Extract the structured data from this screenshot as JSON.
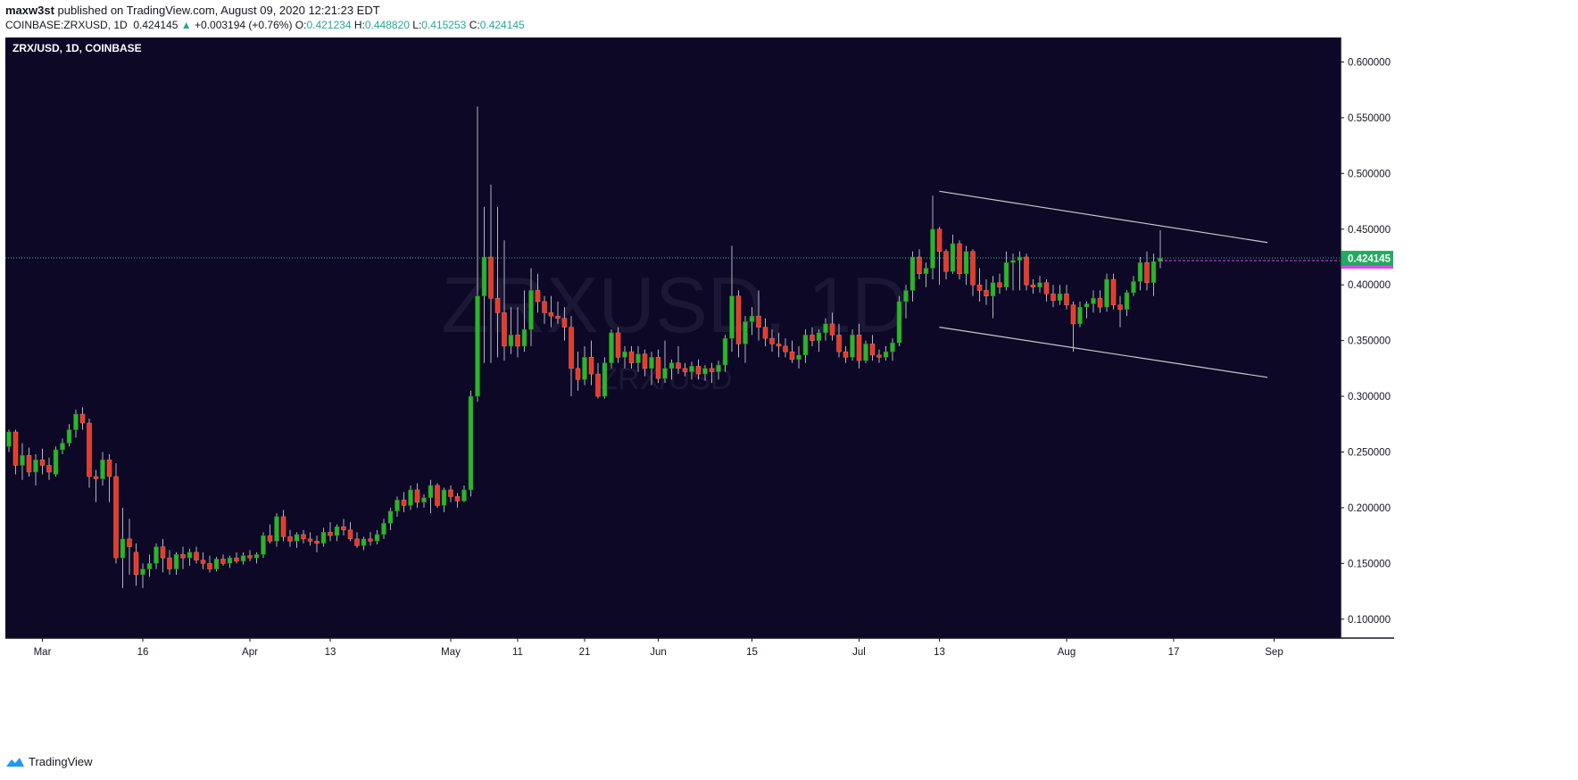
{
  "header": {
    "author": "maxw3st",
    "published_text": "published on TradingView.com, August 09, 2020 12:21:23 EDT",
    "symbol_line": "COINBASE:ZRXUSD, 1D",
    "price": "0.424145",
    "change_arrow": "▲",
    "change": "+0.003194 (+0.76%)",
    "o_label": "O:",
    "o_value": "0.421234",
    "h_label": "H:",
    "h_value": "0.448820",
    "l_label": "L:",
    "l_value": "0.415253",
    "c_label": "C:",
    "c_value": "0.424145"
  },
  "chart_title": "ZRX/USD, 1D, COINBASE",
  "watermark": {
    "line1": "ZRXUSD, 1D",
    "line2": "ZRX/USD"
  },
  "footer": {
    "brand": "TradingView"
  },
  "colors": {
    "background": "#0c0826",
    "up": "#2db42d",
    "down": "#e53b2b",
    "wick": "#b2b5be",
    "price_line": "#22ab94",
    "magenta_line": "#e040fb",
    "channel": "#c8c8c8",
    "price_label_bg": "#22ab62"
  },
  "chart_data": {
    "type": "candlestick",
    "series_name": "ZRX/USD",
    "y_ticks": [
      "0.100000",
      "0.150000",
      "0.200000",
      "0.250000",
      "0.300000",
      "0.350000",
      "0.400000",
      "0.450000",
      "0.500000",
      "0.550000",
      "0.600000"
    ],
    "ylim": [
      0.083,
      0.622
    ],
    "x_ticks": [
      {
        "label": "Mar",
        "i": 5
      },
      {
        "label": "16",
        "i": 20
      },
      {
        "label": "Apr",
        "i": 36
      },
      {
        "label": "13",
        "i": 48
      },
      {
        "label": "May",
        "i": 66
      },
      {
        "label": "11",
        "i": 76
      },
      {
        "label": "21",
        "i": 86
      },
      {
        "label": "Jun",
        "i": 97
      },
      {
        "label": "15",
        "i": 111
      },
      {
        "label": "Jul",
        "i": 127
      },
      {
        "label": "13",
        "i": 139
      },
      {
        "label": "Aug",
        "i": 158
      },
      {
        "label": "17",
        "i": 174
      },
      {
        "label": "Sep",
        "i": 189
      }
    ],
    "last_price": 0.424145,
    "last_price_label": "0.424145",
    "ohlc": [
      [
        0.255,
        0.27,
        0.25,
        0.268
      ],
      [
        0.268,
        0.27,
        0.23,
        0.238
      ],
      [
        0.238,
        0.258,
        0.225,
        0.247
      ],
      [
        0.247,
        0.254,
        0.228,
        0.232
      ],
      [
        0.232,
        0.248,
        0.22,
        0.243
      ],
      [
        0.243,
        0.253,
        0.23,
        0.238
      ],
      [
        0.238,
        0.245,
        0.225,
        0.232
      ],
      [
        0.23,
        0.255,
        0.228,
        0.252
      ],
      [
        0.252,
        0.262,
        0.248,
        0.258
      ],
      [
        0.258,
        0.275,
        0.255,
        0.27
      ],
      [
        0.27,
        0.288,
        0.263,
        0.284
      ],
      [
        0.284,
        0.29,
        0.27,
        0.276
      ],
      [
        0.276,
        0.28,
        0.218,
        0.228
      ],
      [
        0.228,
        0.234,
        0.205,
        0.226
      ],
      [
        0.226,
        0.25,
        0.22,
        0.243
      ],
      [
        0.243,
        0.248,
        0.205,
        0.228
      ],
      [
        0.228,
        0.24,
        0.15,
        0.155
      ],
      [
        0.155,
        0.2,
        0.128,
        0.172
      ],
      [
        0.172,
        0.19,
        0.14,
        0.165
      ],
      [
        0.16,
        0.168,
        0.13,
        0.14
      ],
      [
        0.14,
        0.15,
        0.128,
        0.145
      ],
      [
        0.145,
        0.158,
        0.138,
        0.15
      ],
      [
        0.15,
        0.168,
        0.145,
        0.165
      ],
      [
        0.165,
        0.172,
        0.142,
        0.155
      ],
      [
        0.155,
        0.162,
        0.14,
        0.145
      ],
      [
        0.145,
        0.16,
        0.14,
        0.158
      ],
      [
        0.158,
        0.165,
        0.145,
        0.155
      ],
      [
        0.155,
        0.163,
        0.148,
        0.16
      ],
      [
        0.16,
        0.165,
        0.15,
        0.153
      ],
      [
        0.153,
        0.16,
        0.145,
        0.15
      ],
      [
        0.15,
        0.157,
        0.142,
        0.145
      ],
      [
        0.145,
        0.156,
        0.143,
        0.154
      ],
      [
        0.154,
        0.158,
        0.148,
        0.15
      ],
      [
        0.15,
        0.157,
        0.146,
        0.155
      ],
      [
        0.155,
        0.16,
        0.15,
        0.152
      ],
      [
        0.152,
        0.16,
        0.149,
        0.157
      ],
      [
        0.157,
        0.162,
        0.152,
        0.155
      ],
      [
        0.155,
        0.16,
        0.15,
        0.158
      ],
      [
        0.158,
        0.178,
        0.155,
        0.175
      ],
      [
        0.175,
        0.185,
        0.168,
        0.17
      ],
      [
        0.17,
        0.195,
        0.165,
        0.192
      ],
      [
        0.192,
        0.198,
        0.17,
        0.174
      ],
      [
        0.174,
        0.18,
        0.165,
        0.17
      ],
      [
        0.17,
        0.178,
        0.164,
        0.176
      ],
      [
        0.176,
        0.18,
        0.168,
        0.172
      ],
      [
        0.172,
        0.178,
        0.166,
        0.17
      ],
      [
        0.17,
        0.175,
        0.16,
        0.168
      ],
      [
        0.168,
        0.182,
        0.165,
        0.178
      ],
      [
        0.178,
        0.187,
        0.17,
        0.175
      ],
      [
        0.175,
        0.185,
        0.17,
        0.183
      ],
      [
        0.183,
        0.19,
        0.175,
        0.18
      ],
      [
        0.18,
        0.187,
        0.17,
        0.172
      ],
      [
        0.172,
        0.178,
        0.164,
        0.166
      ],
      [
        0.166,
        0.174,
        0.162,
        0.172
      ],
      [
        0.172,
        0.178,
        0.166,
        0.17
      ],
      [
        0.17,
        0.18,
        0.167,
        0.176
      ],
      [
        0.176,
        0.19,
        0.172,
        0.186
      ],
      [
        0.186,
        0.2,
        0.18,
        0.197
      ],
      [
        0.197,
        0.21,
        0.192,
        0.207
      ],
      [
        0.207,
        0.214,
        0.196,
        0.202
      ],
      [
        0.202,
        0.22,
        0.198,
        0.216
      ],
      [
        0.216,
        0.222,
        0.2,
        0.205
      ],
      [
        0.205,
        0.212,
        0.2,
        0.209
      ],
      [
        0.209,
        0.225,
        0.195,
        0.22
      ],
      [
        0.22,
        0.222,
        0.2,
        0.202
      ],
      [
        0.202,
        0.218,
        0.196,
        0.216
      ],
      [
        0.216,
        0.22,
        0.205,
        0.21
      ],
      [
        0.21,
        0.213,
        0.2,
        0.206
      ],
      [
        0.206,
        0.22,
        0.205,
        0.216
      ],
      [
        0.216,
        0.305,
        0.21,
        0.3
      ],
      [
        0.3,
        0.56,
        0.295,
        0.39
      ],
      [
        0.39,
        0.47,
        0.33,
        0.425
      ],
      [
        0.425,
        0.49,
        0.33,
        0.388
      ],
      [
        0.388,
        0.47,
        0.335,
        0.375
      ],
      [
        0.375,
        0.44,
        0.332,
        0.345
      ],
      [
        0.345,
        0.38,
        0.338,
        0.355
      ],
      [
        0.355,
        0.38,
        0.335,
        0.345
      ],
      [
        0.345,
        0.395,
        0.34,
        0.36
      ],
      [
        0.36,
        0.415,
        0.345,
        0.395
      ],
      [
        0.395,
        0.41,
        0.375,
        0.385
      ],
      [
        0.385,
        0.39,
        0.365,
        0.375
      ],
      [
        0.375,
        0.39,
        0.362,
        0.372
      ],
      [
        0.372,
        0.385,
        0.365,
        0.37
      ],
      [
        0.37,
        0.38,
        0.35,
        0.362
      ],
      [
        0.362,
        0.372,
        0.3,
        0.325
      ],
      [
        0.325,
        0.34,
        0.305,
        0.315
      ],
      [
        0.315,
        0.345,
        0.31,
        0.335
      ],
      [
        0.335,
        0.35,
        0.31,
        0.32
      ],
      [
        0.32,
        0.33,
        0.298,
        0.3
      ],
      [
        0.3,
        0.335,
        0.298,
        0.33
      ],
      [
        0.33,
        0.36,
        0.325,
        0.357
      ],
      [
        0.357,
        0.362,
        0.33,
        0.335
      ],
      [
        0.335,
        0.345,
        0.325,
        0.34
      ],
      [
        0.34,
        0.345,
        0.325,
        0.33
      ],
      [
        0.33,
        0.345,
        0.322,
        0.338
      ],
      [
        0.338,
        0.342,
        0.318,
        0.325
      ],
      [
        0.325,
        0.34,
        0.31,
        0.335
      ],
      [
        0.335,
        0.342,
        0.312,
        0.316
      ],
      [
        0.316,
        0.35,
        0.312,
        0.325
      ],
      [
        0.325,
        0.333,
        0.315,
        0.33
      ],
      [
        0.33,
        0.345,
        0.32,
        0.325
      ],
      [
        0.325,
        0.33,
        0.318,
        0.322
      ],
      [
        0.322,
        0.331,
        0.315,
        0.327
      ],
      [
        0.327,
        0.333,
        0.315,
        0.32
      ],
      [
        0.32,
        0.328,
        0.314,
        0.325
      ],
      [
        0.325,
        0.33,
        0.312,
        0.322
      ],
      [
        0.322,
        0.332,
        0.315,
        0.328
      ],
      [
        0.328,
        0.355,
        0.322,
        0.352
      ],
      [
        0.352,
        0.435,
        0.34,
        0.39
      ],
      [
        0.39,
        0.395,
        0.335,
        0.347
      ],
      [
        0.347,
        0.372,
        0.33,
        0.367
      ],
      [
        0.367,
        0.38,
        0.355,
        0.372
      ],
      [
        0.372,
        0.395,
        0.35,
        0.362
      ],
      [
        0.362,
        0.37,
        0.345,
        0.352
      ],
      [
        0.352,
        0.36,
        0.34,
        0.347
      ],
      [
        0.347,
        0.357,
        0.335,
        0.345
      ],
      [
        0.345,
        0.352,
        0.335,
        0.34
      ],
      [
        0.34,
        0.35,
        0.33,
        0.333
      ],
      [
        0.333,
        0.345,
        0.325,
        0.337
      ],
      [
        0.337,
        0.36,
        0.33,
        0.355
      ],
      [
        0.355,
        0.362,
        0.345,
        0.35
      ],
      [
        0.35,
        0.36,
        0.34,
        0.357
      ],
      [
        0.357,
        0.37,
        0.35,
        0.365
      ],
      [
        0.365,
        0.375,
        0.35,
        0.355
      ],
      [
        0.355,
        0.365,
        0.335,
        0.34
      ],
      [
        0.34,
        0.345,
        0.33,
        0.335
      ],
      [
        0.335,
        0.36,
        0.332,
        0.355
      ],
      [
        0.355,
        0.365,
        0.325,
        0.332
      ],
      [
        0.332,
        0.35,
        0.33,
        0.347
      ],
      [
        0.347,
        0.355,
        0.332,
        0.337
      ],
      [
        0.337,
        0.342,
        0.33,
        0.335
      ],
      [
        0.335,
        0.345,
        0.332,
        0.34
      ],
      [
        0.34,
        0.352,
        0.332,
        0.348
      ],
      [
        0.348,
        0.39,
        0.345,
        0.385
      ],
      [
        0.385,
        0.4,
        0.37,
        0.395
      ],
      [
        0.395,
        0.43,
        0.385,
        0.425
      ],
      [
        0.425,
        0.432,
        0.405,
        0.41
      ],
      [
        0.41,
        0.42,
        0.398,
        0.415
      ],
      [
        0.415,
        0.48,
        0.405,
        0.45
      ],
      [
        0.45,
        0.452,
        0.4,
        0.43
      ],
      [
        0.43,
        0.432,
        0.405,
        0.412
      ],
      [
        0.412,
        0.445,
        0.41,
        0.437
      ],
      [
        0.437,
        0.44,
        0.405,
        0.41
      ],
      [
        0.41,
        0.435,
        0.4,
        0.43
      ],
      [
        0.43,
        0.432,
        0.39,
        0.4
      ],
      [
        0.4,
        0.415,
        0.385,
        0.395
      ],
      [
        0.395,
        0.405,
        0.382,
        0.39
      ],
      [
        0.39,
        0.408,
        0.37,
        0.402
      ],
      [
        0.402,
        0.41,
        0.392,
        0.398
      ],
      [
        0.398,
        0.43,
        0.395,
        0.42
      ],
      [
        0.42,
        0.428,
        0.395,
        0.422
      ],
      [
        0.422,
        0.43,
        0.395,
        0.425
      ],
      [
        0.425,
        0.428,
        0.395,
        0.4
      ],
      [
        0.4,
        0.405,
        0.392,
        0.398
      ],
      [
        0.398,
        0.408,
        0.393,
        0.402
      ],
      [
        0.402,
        0.405,
        0.385,
        0.392
      ],
      [
        0.392,
        0.4,
        0.38,
        0.386
      ],
      [
        0.386,
        0.4,
        0.382,
        0.392
      ],
      [
        0.392,
        0.4,
        0.378,
        0.382
      ],
      [
        0.382,
        0.385,
        0.34,
        0.365
      ],
      [
        0.365,
        0.385,
        0.362,
        0.38
      ],
      [
        0.38,
        0.385,
        0.37,
        0.383
      ],
      [
        0.383,
        0.395,
        0.375,
        0.388
      ],
      [
        0.388,
        0.395,
        0.375,
        0.38
      ],
      [
        0.38,
        0.41,
        0.376,
        0.405
      ],
      [
        0.405,
        0.41,
        0.378,
        0.382
      ],
      [
        0.382,
        0.39,
        0.362,
        0.378
      ],
      [
        0.378,
        0.395,
        0.372,
        0.393
      ],
      [
        0.393,
        0.408,
        0.39,
        0.403
      ],
      [
        0.403,
        0.425,
        0.395,
        0.42
      ],
      [
        0.42,
        0.43,
        0.395,
        0.402
      ],
      [
        0.402,
        0.428,
        0.39,
        0.421
      ],
      [
        0.421,
        0.449,
        0.415,
        0.424
      ]
    ],
    "channel": {
      "upper": [
        {
          "i": 139,
          "price": 0.484
        },
        {
          "i": 188,
          "price": 0.438
        }
      ],
      "lower": [
        {
          "i": 139,
          "price": 0.362
        },
        {
          "i": 188,
          "price": 0.317
        }
      ]
    }
  }
}
